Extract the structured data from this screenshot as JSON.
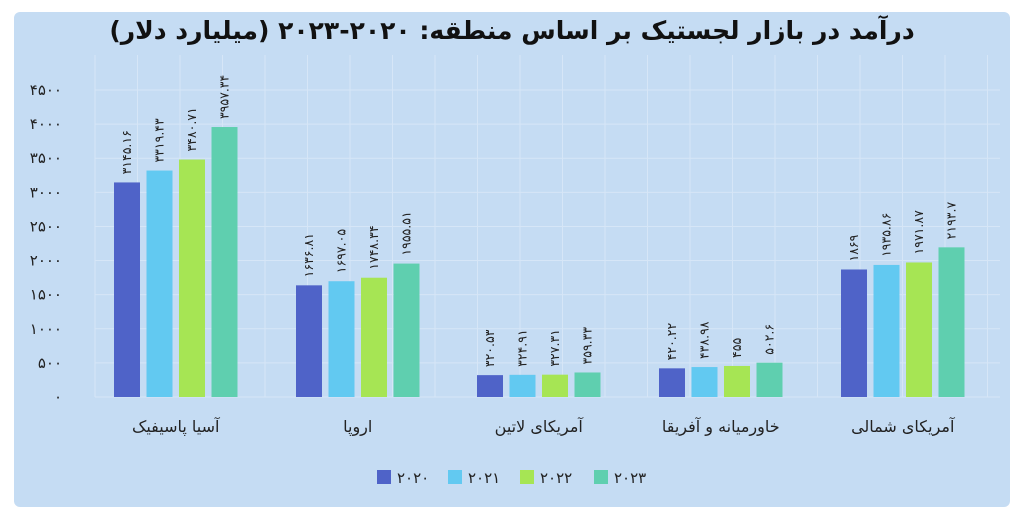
{
  "chart_data": {
    "type": "bar",
    "title": "درآمد در بازار لجستیک بر اساس منطقه: ۲۰۲۰-۲۰۲۳ (میلیارد دلار)",
    "categories": [
      "آسیا پاسیفیک",
      "اروپا",
      "آمریکای لاتین",
      "خاورمیانه و آفریقا",
      "آمریکای شمالی"
    ],
    "series": [
      {
        "name": "۲۰۲۰",
        "color": "#4f63c8",
        "values": [
          3145.16,
          1636.81,
          320.53,
          420.22,
          1869
        ],
        "labels": [
          "۳۱۴۵.۱۶",
          "۱۶۳۶.۸۱",
          "۳۲۰.۵۳",
          "۴۲۰.۲۲",
          "۱۸۶۹"
        ]
      },
      {
        "name": "۲۰۲۱",
        "color": "#62c9f1",
        "values": [
          3319.43,
          1697.05,
          324.91,
          438.98,
          1935.86
        ],
        "labels": [
          "۳۳۱۹.۴۳",
          "۱۶۹۷.۰۵",
          "۳۲۴.۹۱",
          "۴۳۸.۹۸",
          "۱۹۳۵.۸۶"
        ]
      },
      {
        "name": "۲۰۲۲",
        "color": "#a6e554",
        "values": [
          3480.71,
          1748.34,
          327.31,
          455,
          1971.87
        ],
        "labels": [
          "۳۴۸۰.۷۱",
          "۱۷۴۸.۳۴",
          "۳۲۷.۳۱",
          "۴۵۵",
          "۱۹۷۱.۸۷"
        ]
      },
      {
        "name": "۲۰۲۳",
        "color": "#5fcfaf",
        "values": [
          3957.34,
          1955.51,
          359.33,
          502.6,
          2193.7
        ],
        "labels": [
          "۳۹۵۷.۳۴",
          "۱۹۵۵.۵۱",
          "۳۵۹.۳۳",
          "۵۰۲.۶",
          "۲۱۹۳.۷"
        ]
      }
    ],
    "yticks": [
      0,
      500,
      1000,
      1500,
      2000,
      2500,
      3000,
      3500,
      4000,
      4500
    ],
    "ytick_labels": [
      "۰",
      "۵۰۰",
      "۱۰۰۰",
      "۱۵۰۰",
      "۲۰۰۰",
      "۲۵۰۰",
      "۳۰۰۰",
      "۳۵۰۰",
      "۴۰۰۰",
      "۴۵۰۰"
    ],
    "ylim": [
      0,
      4500
    ],
    "grid": true,
    "legend_position": "bottom"
  }
}
